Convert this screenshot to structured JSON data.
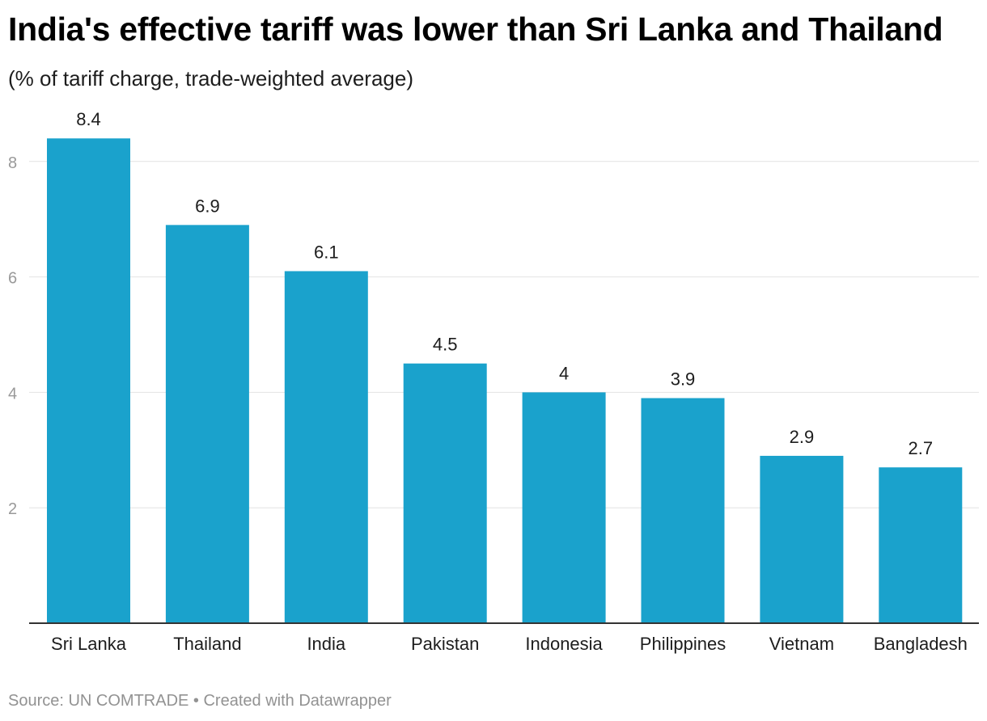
{
  "header": {
    "title": "India's effective tariff was lower than Sri Lanka and Thailand",
    "subtitle": "(% of tariff charge, trade-weighted average)"
  },
  "footer": {
    "source": "Source: UN COMTRADE • Created with Datawrapper"
  },
  "colors": {
    "bar": "#1aa2cc",
    "grid": "#e2e2e2",
    "axis": "#333333",
    "tick_label": "#999999",
    "category_label": "#1d1d1d",
    "value_label": "#1d1d1d"
  },
  "chart_data": {
    "type": "bar",
    "title": "India's effective tariff was lower than Sri Lanka and Thailand",
    "subtitle": "(% of tariff charge, trade-weighted average)",
    "categories": [
      "Sri Lanka",
      "Thailand",
      "India",
      "Pakistan",
      "Indonesia",
      "Philippines",
      "Vietnam",
      "Bangladesh"
    ],
    "values": [
      8.4,
      6.9,
      6.1,
      4.5,
      4,
      3.9,
      2.9,
      2.7
    ],
    "value_labels": [
      "8.4",
      "6.9",
      "6.1",
      "4.5",
      "4",
      "3.9",
      "2.9",
      "2.7"
    ],
    "yticks": [
      2,
      4,
      6,
      8
    ],
    "ylim": [
      0,
      9
    ],
    "grid": true,
    "legend": "none"
  }
}
